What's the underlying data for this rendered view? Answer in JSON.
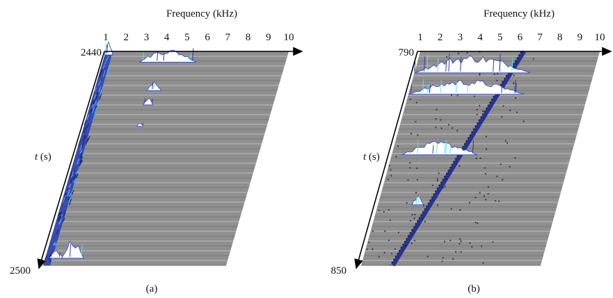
{
  "chart_data": [
    {
      "type": "area",
      "panel_label": "(a)",
      "xlabel": "Frequency (kHz)",
      "ylabel": "t (s)",
      "x_ticks": [
        "1",
        "2",
        "3",
        "4",
        "5",
        "6",
        "7",
        "8",
        "9",
        "10"
      ],
      "xlim": [
        1,
        10
      ],
      "t_start_label": "2440",
      "t_end_label": "2500",
      "tlim": [
        2440,
        2500
      ],
      "trace_count": 44,
      "low_freq_band": [
        1.0,
        1.35
      ],
      "peaks": [
        {
          "t": 2441,
          "f_start": 1.0,
          "f_end": 1.4,
          "height": 1.0
        },
        {
          "t": 2443,
          "f_start": 2.8,
          "f_end": 5.6,
          "height": 0.9
        },
        {
          "t": 2451,
          "f_start": 3.6,
          "f_end": 4.3,
          "height": 0.6
        },
        {
          "t": 2455,
          "f_start": 3.6,
          "f_end": 4.1,
          "height": 0.5
        },
        {
          "t": 2461,
          "f_start": 3.6,
          "f_end": 3.9,
          "height": 0.25
        },
        {
          "t": 2498,
          "f_start": 1.2,
          "f_end": 1.9,
          "height": 0.5
        },
        {
          "t": 2498,
          "f_start": 1.8,
          "f_end": 2.9,
          "height": 1.3
        }
      ]
    },
    {
      "type": "area",
      "panel_label": "(b)",
      "xlabel": "Frequency (kHz)",
      "ylabel": "t (s)",
      "x_ticks": [
        "1",
        "2",
        "3",
        "4",
        "5",
        "6",
        "7",
        "8",
        "9",
        "10"
      ],
      "xlim": [
        1,
        10
      ],
      "t_start_label": "790",
      "t_end_label": "850",
      "tlim": [
        790,
        850
      ],
      "trace_count": 44,
      "drift_line": {
        "f_start": 6.2,
        "f_end": 2.6
      },
      "peaks": [
        {
          "t": 796,
          "f_start": 1.0,
          "f_end": 6.8,
          "height": 1.2
        },
        {
          "t": 802,
          "f_start": 1.0,
          "f_end": 6.8,
          "height": 1.0
        },
        {
          "t": 819,
          "f_start": 1.5,
          "f_end": 5.3,
          "height": 0.9
        },
        {
          "t": 833,
          "f_start": 2.7,
          "f_end": 3.3,
          "height": 0.6
        }
      ]
    }
  ]
}
